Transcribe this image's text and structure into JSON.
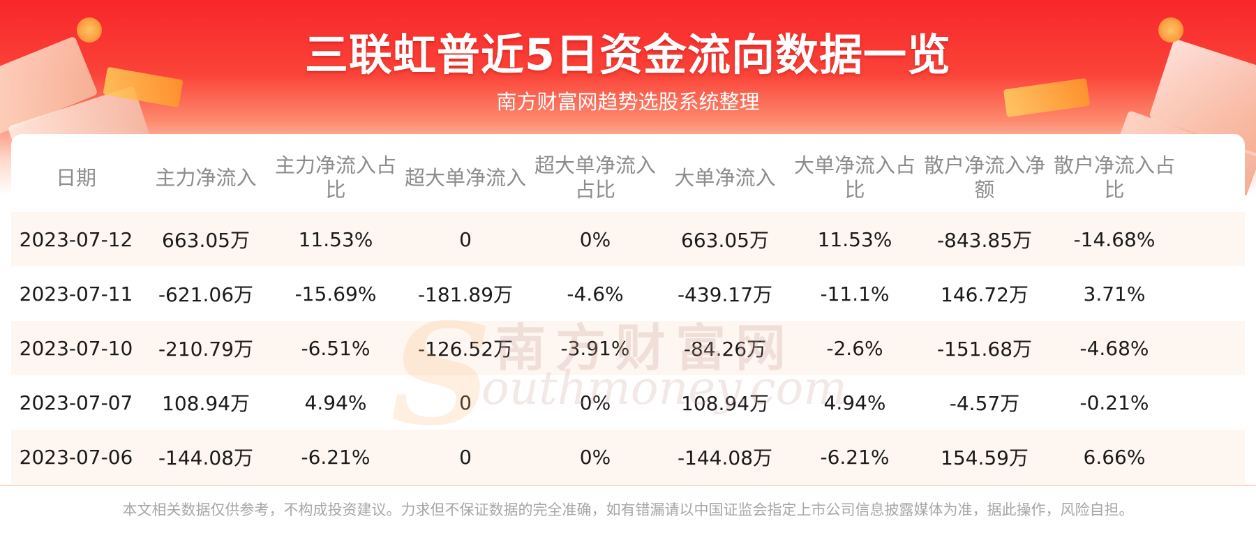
{
  "header": {
    "title": "三联虹普近5日资金流向数据一览",
    "subtitle": "南方财富网趋势选股系统整理"
  },
  "watermark": {
    "text_cn": "南方财富网",
    "text_en": "outhmoney.com"
  },
  "table": {
    "columns": [
      "日期",
      "主力净流入",
      "主力净流入占比",
      "超大单净流入",
      "超大单净流入占比",
      "大单净流入",
      "大单净流入占比",
      "散户净流入净额",
      "散户净流入占比"
    ],
    "rows": [
      [
        "2023-07-12",
        "663.05万",
        "11.53%",
        "0",
        "0%",
        "663.05万",
        "11.53%",
        "-843.85万",
        "-14.68%"
      ],
      [
        "2023-07-11",
        "-621.06万",
        "-15.69%",
        "-181.89万",
        "-4.6%",
        "-439.17万",
        "-11.1%",
        "146.72万",
        "3.71%"
      ],
      [
        "2023-07-10",
        "-210.79万",
        "-6.51%",
        "-126.52万",
        "-3.91%",
        "-84.26万",
        "-2.6%",
        "-151.68万",
        "-4.68%"
      ],
      [
        "2023-07-07",
        "108.94万",
        "4.94%",
        "0",
        "0%",
        "108.94万",
        "4.94%",
        "-4.57万",
        "-0.21%"
      ],
      [
        "2023-07-06",
        "-144.08万",
        "-6.21%",
        "0",
        "0%",
        "-144.08万",
        "-6.21%",
        "154.59万",
        "6.66%"
      ]
    ]
  },
  "footer": {
    "disclaimer": "本文相关数据仅供参考，不构成投资建议。力求但不保证数据的完全准确，如有错漏请以中国证监会指定上市公司信息披露媒体为准，据此操作，风险自担。"
  },
  "colors": {
    "banner_red": "#f8262a",
    "row_stripe": "#fef7f1",
    "header_text": "#8c8c8c"
  }
}
